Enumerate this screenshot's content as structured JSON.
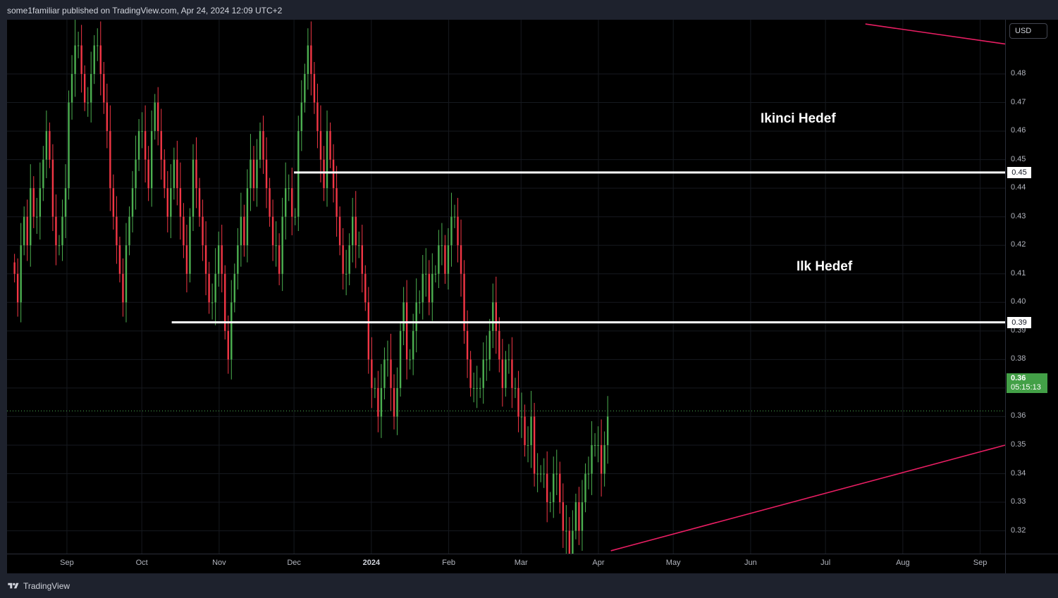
{
  "header": {
    "published_text": "some1familiar published on TradingView.com, Apr 24, 2024 12:09 UTC+2"
  },
  "footer": {
    "brand": "TradingView"
  },
  "price_axis": {
    "currency": "USD"
  },
  "colors": {
    "up": "#4caf50",
    "down": "#f23645",
    "trendline": "#e91e63",
    "level": "#ffffff",
    "last_price_bg": "#43a047"
  },
  "chart_data": {
    "type": "candlestick",
    "ylim": [
      0.312,
      0.499
    ],
    "y_ticks": [
      "0.48",
      "0.47",
      "0.46",
      "0.45",
      "0.44",
      "0.43",
      "0.42",
      "0.41",
      "0.40",
      "0.39",
      "0.38",
      "0.37",
      "0.36",
      "0.35",
      "0.34",
      "0.33",
      "0.32"
    ],
    "x_ticks": [
      "Sep",
      "Oct",
      "Nov",
      "Dec",
      "2024",
      "Feb",
      "Mar",
      "Apr",
      "May",
      "Jun",
      "Jul",
      "Aug",
      "Sep"
    ],
    "x_tick_days": [
      0,
      30,
      61,
      91,
      122,
      153,
      182,
      213,
      243,
      274,
      304,
      335,
      366
    ],
    "xlim_days": [
      -24,
      376
    ],
    "year_tick": "2024",
    "levels": [
      {
        "label": "Ikinci Hedef",
        "price": 0.4455,
        "price_label": "0.45",
        "start_day": 91
      },
      {
        "label": "Ilk Hedef",
        "price": 0.393,
        "price_label": "0.39",
        "start_day": 42
      }
    ],
    "trendlines": [
      {
        "from": {
          "day": 218,
          "price": 0.313
        },
        "to": {
          "day": 376,
          "price": 0.35
        }
      },
      {
        "from": {
          "day": 320,
          "price": 0.4975
        },
        "to": {
          "day": 376,
          "price": 0.4905
        }
      }
    ],
    "last_price": {
      "value": 0.362,
      "label": "0.36",
      "countdown": "05:15:13"
    },
    "closes": [
      0.41,
      0.4,
      0.42,
      0.43,
      0.42,
      0.44,
      0.43,
      0.43,
      0.44,
      0.45,
      0.46,
      0.45,
      0.43,
      0.42,
      0.42,
      0.43,
      0.44,
      0.47,
      0.48,
      0.49,
      0.49,
      0.48,
      0.47,
      0.47,
      0.48,
      0.49,
      0.49,
      0.48,
      0.47,
      0.46,
      0.44,
      0.43,
      0.42,
      0.41,
      0.4,
      0.42,
      0.43,
      0.44,
      0.45,
      0.46,
      0.46,
      0.45,
      0.44,
      0.46,
      0.47,
      0.46,
      0.45,
      0.44,
      0.43,
      0.44,
      0.45,
      0.44,
      0.43,
      0.42,
      0.41,
      0.43,
      0.45,
      0.44,
      0.43,
      0.42,
      0.41,
      0.4,
      0.4,
      0.41,
      0.42,
      0.41,
      0.39,
      0.38,
      0.4,
      0.41,
      0.42,
      0.43,
      0.42,
      0.44,
      0.45,
      0.44,
      0.45,
      0.46,
      0.45,
      0.44,
      0.43,
      0.42,
      0.42,
      0.41,
      0.43,
      0.44,
      0.44,
      0.43,
      0.43,
      0.46,
      0.47,
      0.48,
      0.49,
      0.48,
      0.47,
      0.46,
      0.45,
      0.44,
      0.46,
      0.45,
      0.44,
      0.43,
      0.42,
      0.41,
      0.41,
      0.42,
      0.43,
      0.42,
      0.42,
      0.41,
      0.4,
      0.38,
      0.37,
      0.37,
      0.36,
      0.37,
      0.38,
      0.38,
      0.37,
      0.36,
      0.37,
      0.39,
      0.4,
      0.38,
      0.38,
      0.39,
      0.4,
      0.4,
      0.41,
      0.41,
      0.4,
      0.41,
      0.41,
      0.42,
      0.42,
      0.41,
      0.42,
      0.43,
      0.43,
      0.42,
      0.41,
      0.39,
      0.38,
      0.37,
      0.37,
      0.37,
      0.37,
      0.38,
      0.38,
      0.39,
      0.4,
      0.39,
      0.38,
      0.37,
      0.38,
      0.38,
      0.37,
      0.37,
      0.36,
      0.36,
      0.35,
      0.35,
      0.36,
      0.34,
      0.34,
      0.34,
      0.34,
      0.33,
      0.33,
      0.34,
      0.34,
      0.33,
      0.32,
      0.32,
      0.31,
      0.32,
      0.33,
      0.32,
      0.33,
      0.34,
      0.34,
      0.35,
      0.35,
      0.35,
      0.34,
      0.35,
      0.36
    ]
  },
  "annotations": [
    {
      "text": "Ikinci Hedef"
    },
    {
      "text": "Ilk Hedef"
    }
  ]
}
